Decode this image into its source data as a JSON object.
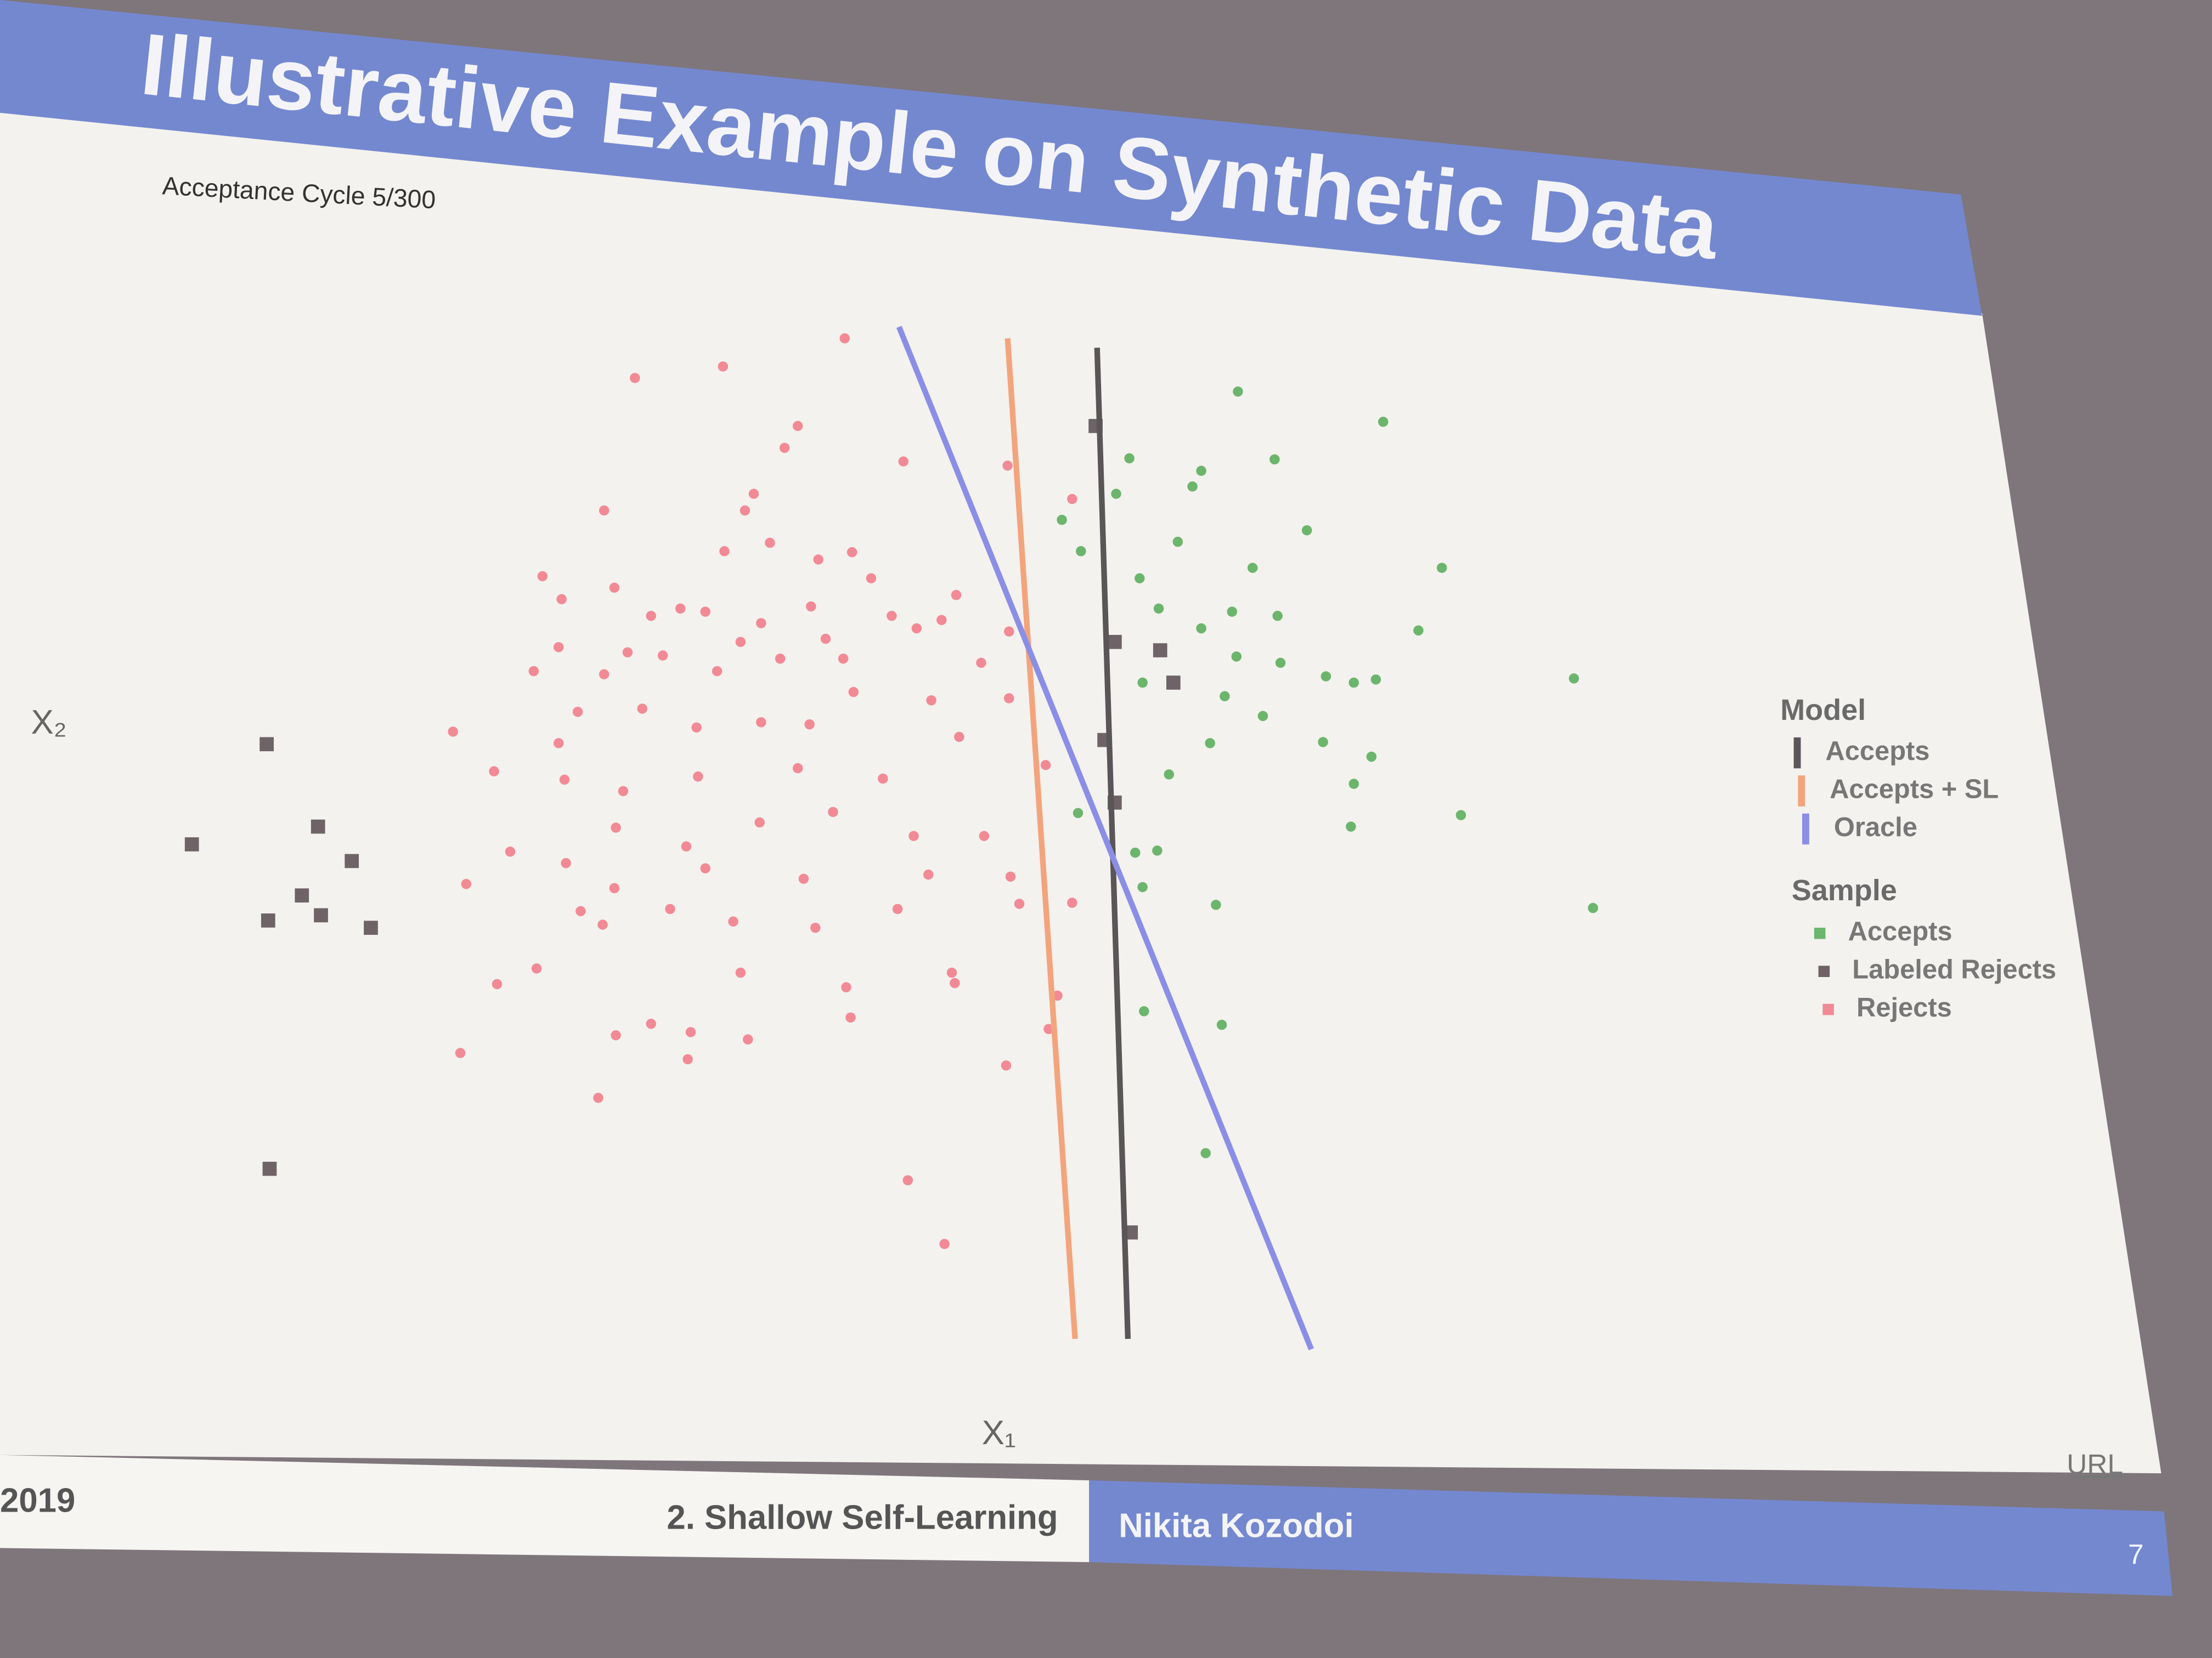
{
  "slide": {
    "title": "Illustrative Example on Synthetic Data",
    "footer": {
      "date": "2019",
      "section": "2. Shallow Self-Learning",
      "author": "Nikita Kozodoi",
      "page": "7",
      "link": "URL"
    }
  },
  "chart_data": {
    "type": "scatter",
    "subtitle": "Acceptance Cycle 5/300",
    "x_label": "X₁",
    "y_label": "X₂",
    "xlim": [
      0,
      100
    ],
    "ylim": [
      0,
      100
    ],
    "grid": false,
    "legend": "right",
    "groups": [
      {
        "title": "Model",
        "series": [
          {
            "name": "Accepts",
            "mode": "line",
            "color": "#5a5557",
            "x": [
              64.2,
              66.3
            ],
            "y": [
              96.4,
              1.4
            ]
          },
          {
            "name": "Accepts + SL",
            "mode": "line",
            "color": "#f3a47c",
            "x": [
              58.1,
              62.7
            ],
            "y": [
              97.3,
              1.4
            ]
          },
          {
            "name": "Oracle",
            "mode": "line",
            "color": "#8a8ee6",
            "x": [
              50.7,
              78.8
            ],
            "y": [
              98.4,
              0.4
            ]
          }
        ]
      },
      {
        "title": "Sample",
        "series": [
          {
            "name": "Accepts",
            "mode": "markers",
            "marker": "circle",
            "color": "#6cb56c",
            "x": [
              73.8,
              83.7,
              66.4,
              71.3,
              76.3,
              70.7,
              65.5,
              61.8,
              78.5,
              69.7,
              63.1,
              87.7,
              74.8,
              67.1,
              68.4,
              73.4,
              76.5,
              71.3,
              86.1,
              73.7,
              76.7,
              79.8,
              81.7,
              83.2,
              96.7,
              72.9,
              67.3,
              75.5,
              71.9,
              79.6,
              82.9,
              69.1,
              81.7,
              89.0,
              81.5,
              62.9,
              66.8,
              68.3,
              67.3,
              72.3,
              98.0,
              67.4,
              72.7,
              71.6
            ],
            "y": [
              92.2,
              89.3,
              85.8,
              84.6,
              85.7,
              83.1,
              82.4,
              79.9,
              78.9,
              77.8,
              76.9,
              75.3,
              75.3,
              74.3,
              71.4,
              71.1,
              70.7,
              69.5,
              69.3,
              66.8,
              66.2,
              64.9,
              64.3,
              64.6,
              64.7,
              63.0,
              64.3,
              61.1,
              58.5,
              58.6,
              57.2,
              55.5,
              54.6,
              51.6,
              50.5,
              51.8,
              48.0,
              48.2,
              44.7,
              43.0,
              42.7,
              32.8,
              31.5,
              19.2
            ]
          },
          {
            "name": "Labeled Rejects",
            "mode": "markers",
            "marker": "square",
            "color": "#6e6468",
            "x": [
              7.6,
              11.1,
              2.5,
              13.4,
              10.0,
              11.3,
              7.7,
              14.7,
              7.8,
              68.5,
              69.4,
              65.4,
              64.7,
              65.4,
              64.1,
              66.5
            ],
            "y": [
              58.4,
              50.5,
              48.8,
              47.2,
              43.9,
              42.0,
              41.5,
              40.8,
              17.7,
              67.4,
              64.3,
              68.2,
              58.8,
              52.8,
              88.9,
              11.6
            ]
          },
          {
            "name": "Rejects",
            "mode": "markers",
            "marker": "circle",
            "color": "#f28a95",
            "x": [
              47.0,
              32.7,
              38.7,
              43.8,
              42.9,
              51.0,
              58.1,
              40.8,
              30.6,
              62.5,
              40.2,
              38.8,
              41.9,
              47.5,
              45.2,
              26.4,
              31.3,
              27.7,
              48.8,
              54.6,
              35.8,
              37.5,
              33.8,
              41.3,
              44.7,
              50.2,
              53.6,
              27.5,
              32.2,
              34.6,
              39.9,
              45.7,
              51.9,
              58.2,
              25.8,
              30.6,
              38.3,
              42.6,
              46.9,
              56.3,
              28.8,
              33.2,
              41.3,
              47.6,
              52.9,
              58.2,
              20.3,
              27.5,
              36.9,
              44.6,
              54.8,
              23.1,
              27.9,
              31.9,
              37.0,
              43.8,
              49.6,
              60.7,
              24.2,
              31.4,
              36.2,
              41.2,
              46.2,
              51.7,
              56.5,
              21.2,
              28.0,
              31.3,
              37.5,
              44.2,
              52.7,
              58.3,
              29.0,
              35.1,
              39.4,
              45.0,
              50.6,
              58.9,
              62.5,
              30.5,
              26.0,
              23.3,
              39.9,
              47.1,
              54.3,
              61.5,
              31.4,
              33.8,
              36.5,
              40.4,
              47.4,
              60.9,
              20.8,
              36.3,
              58.0,
              30.2,
              51.3,
              53.8,
              54.5
            ],
            "y": [
              97.3,
              93.5,
              94.6,
              88.9,
              86.8,
              85.5,
              85.1,
              82.4,
              80.8,
              81.9,
              80.8,
              76.9,
              77.7,
              76.8,
              76.1,
              74.5,
              73.4,
              72.3,
              74.3,
              72.7,
              71.4,
              71.1,
              70.7,
              70.0,
              71.6,
              70.7,
              70.3,
              67.7,
              67.2,
              66.9,
              68.2,
              68.5,
              69.5,
              69.2,
              65.4,
              65.1,
              65.4,
              66.6,
              66.6,
              66.2,
              61.5,
              61.8,
              60.5,
              63.4,
              62.6,
              62.8,
              59.6,
              58.5,
              60.0,
              60.3,
              59.1,
              55.8,
              55.0,
              53.9,
              55.3,
              56.1,
              55.1,
              56.4,
              48.1,
              50.4,
              48.6,
              50.9,
              51.9,
              49.6,
              49.6,
              45.0,
              47.0,
              44.6,
              46.5,
              45.5,
              45.9,
              45.7,
              42.4,
              42.6,
              41.4,
              40.8,
              42.6,
              43.1,
              43.2,
              41.1,
              36.9,
              35.4,
              36.5,
              35.1,
              36.5,
              34.3,
              30.5,
              31.6,
              30.8,
              30.1,
              32.2,
              31.1,
              28.8,
              28.2,
              27.6,
              24.5,
              16.6,
              10.5,
              35.5
            ]
          }
        ]
      }
    ]
  }
}
